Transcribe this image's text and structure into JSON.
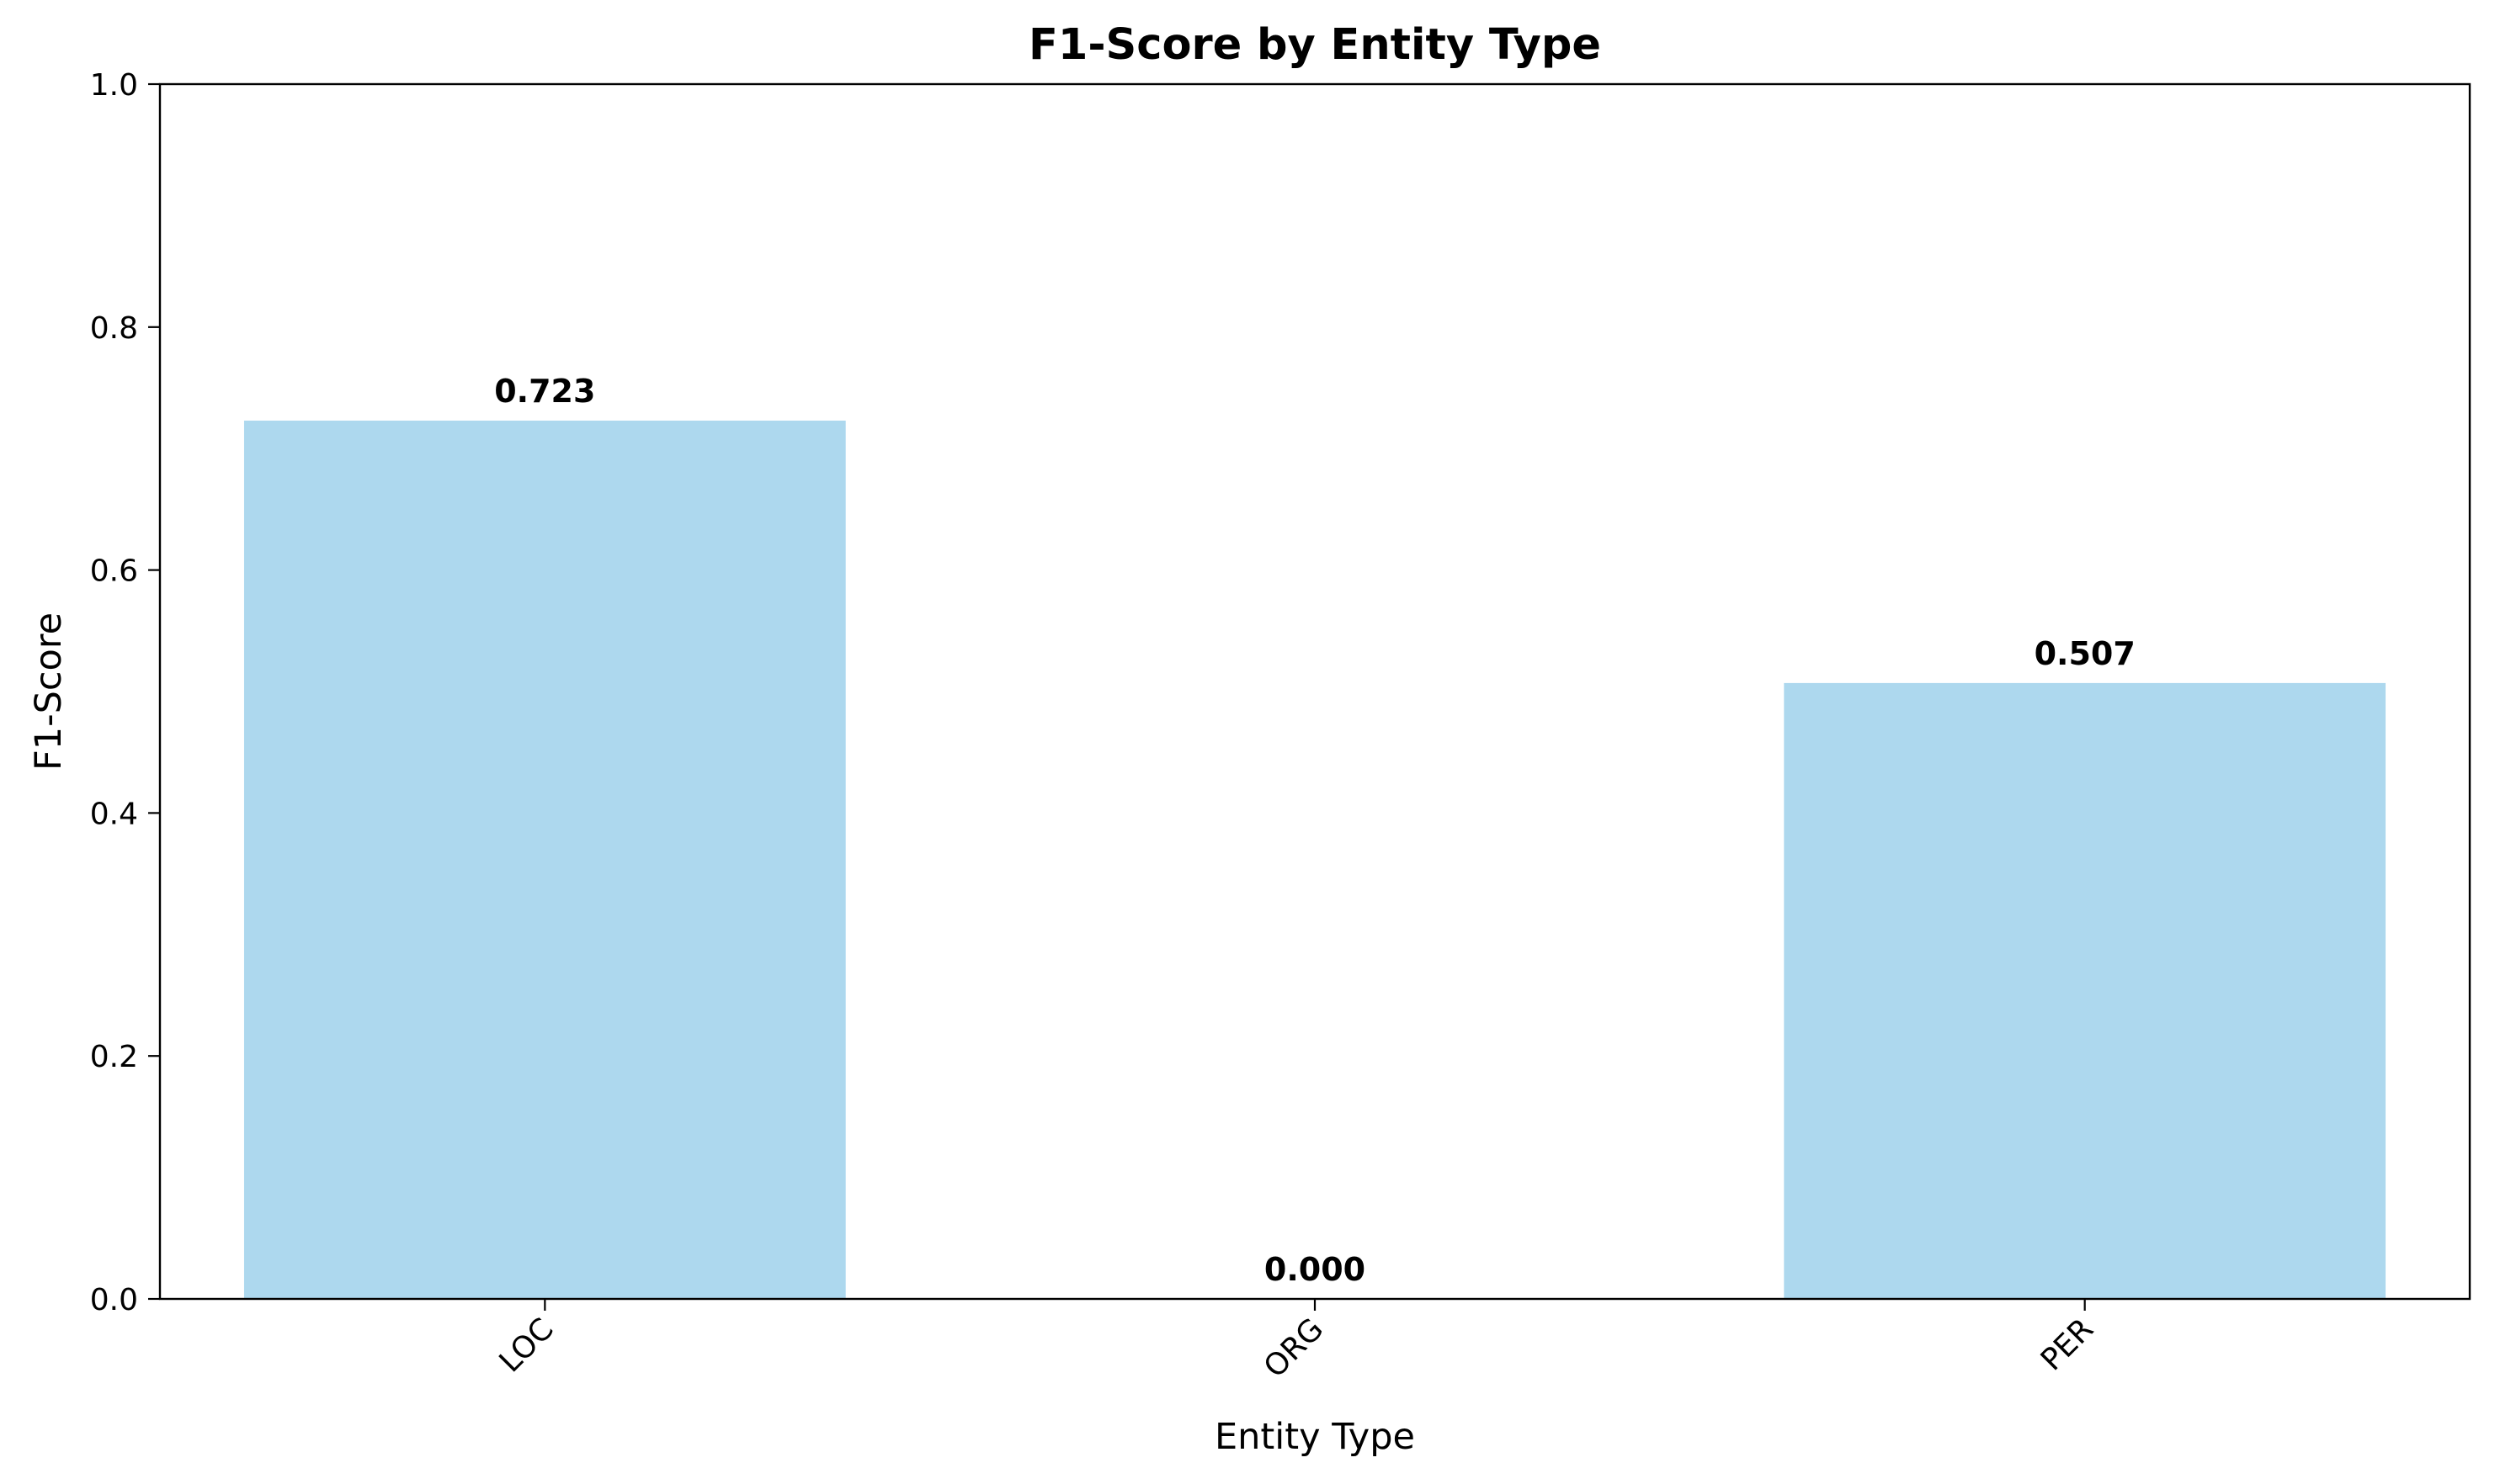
{
  "chart_data": {
    "type": "bar",
    "title": "F1-Score by Entity Type",
    "xlabel": "Entity Type",
    "ylabel": "F1-Score",
    "categories": [
      "LOC",
      "ORG",
      "PER"
    ],
    "values": [
      0.723,
      0.0,
      0.507
    ],
    "value_labels": [
      "0.723",
      "0.000",
      "0.507"
    ],
    "ylim": [
      0,
      1.0
    ],
    "yticks": [
      0.0,
      0.2,
      0.4,
      0.6,
      0.8,
      1.0
    ],
    "ytick_labels": [
      "0.0",
      "0.2",
      "0.4",
      "0.6",
      "0.8",
      "1.0"
    ],
    "bar_color": "#add8ee",
    "grid": false,
    "legend": "none",
    "xtick_rotation_deg": 45
  }
}
